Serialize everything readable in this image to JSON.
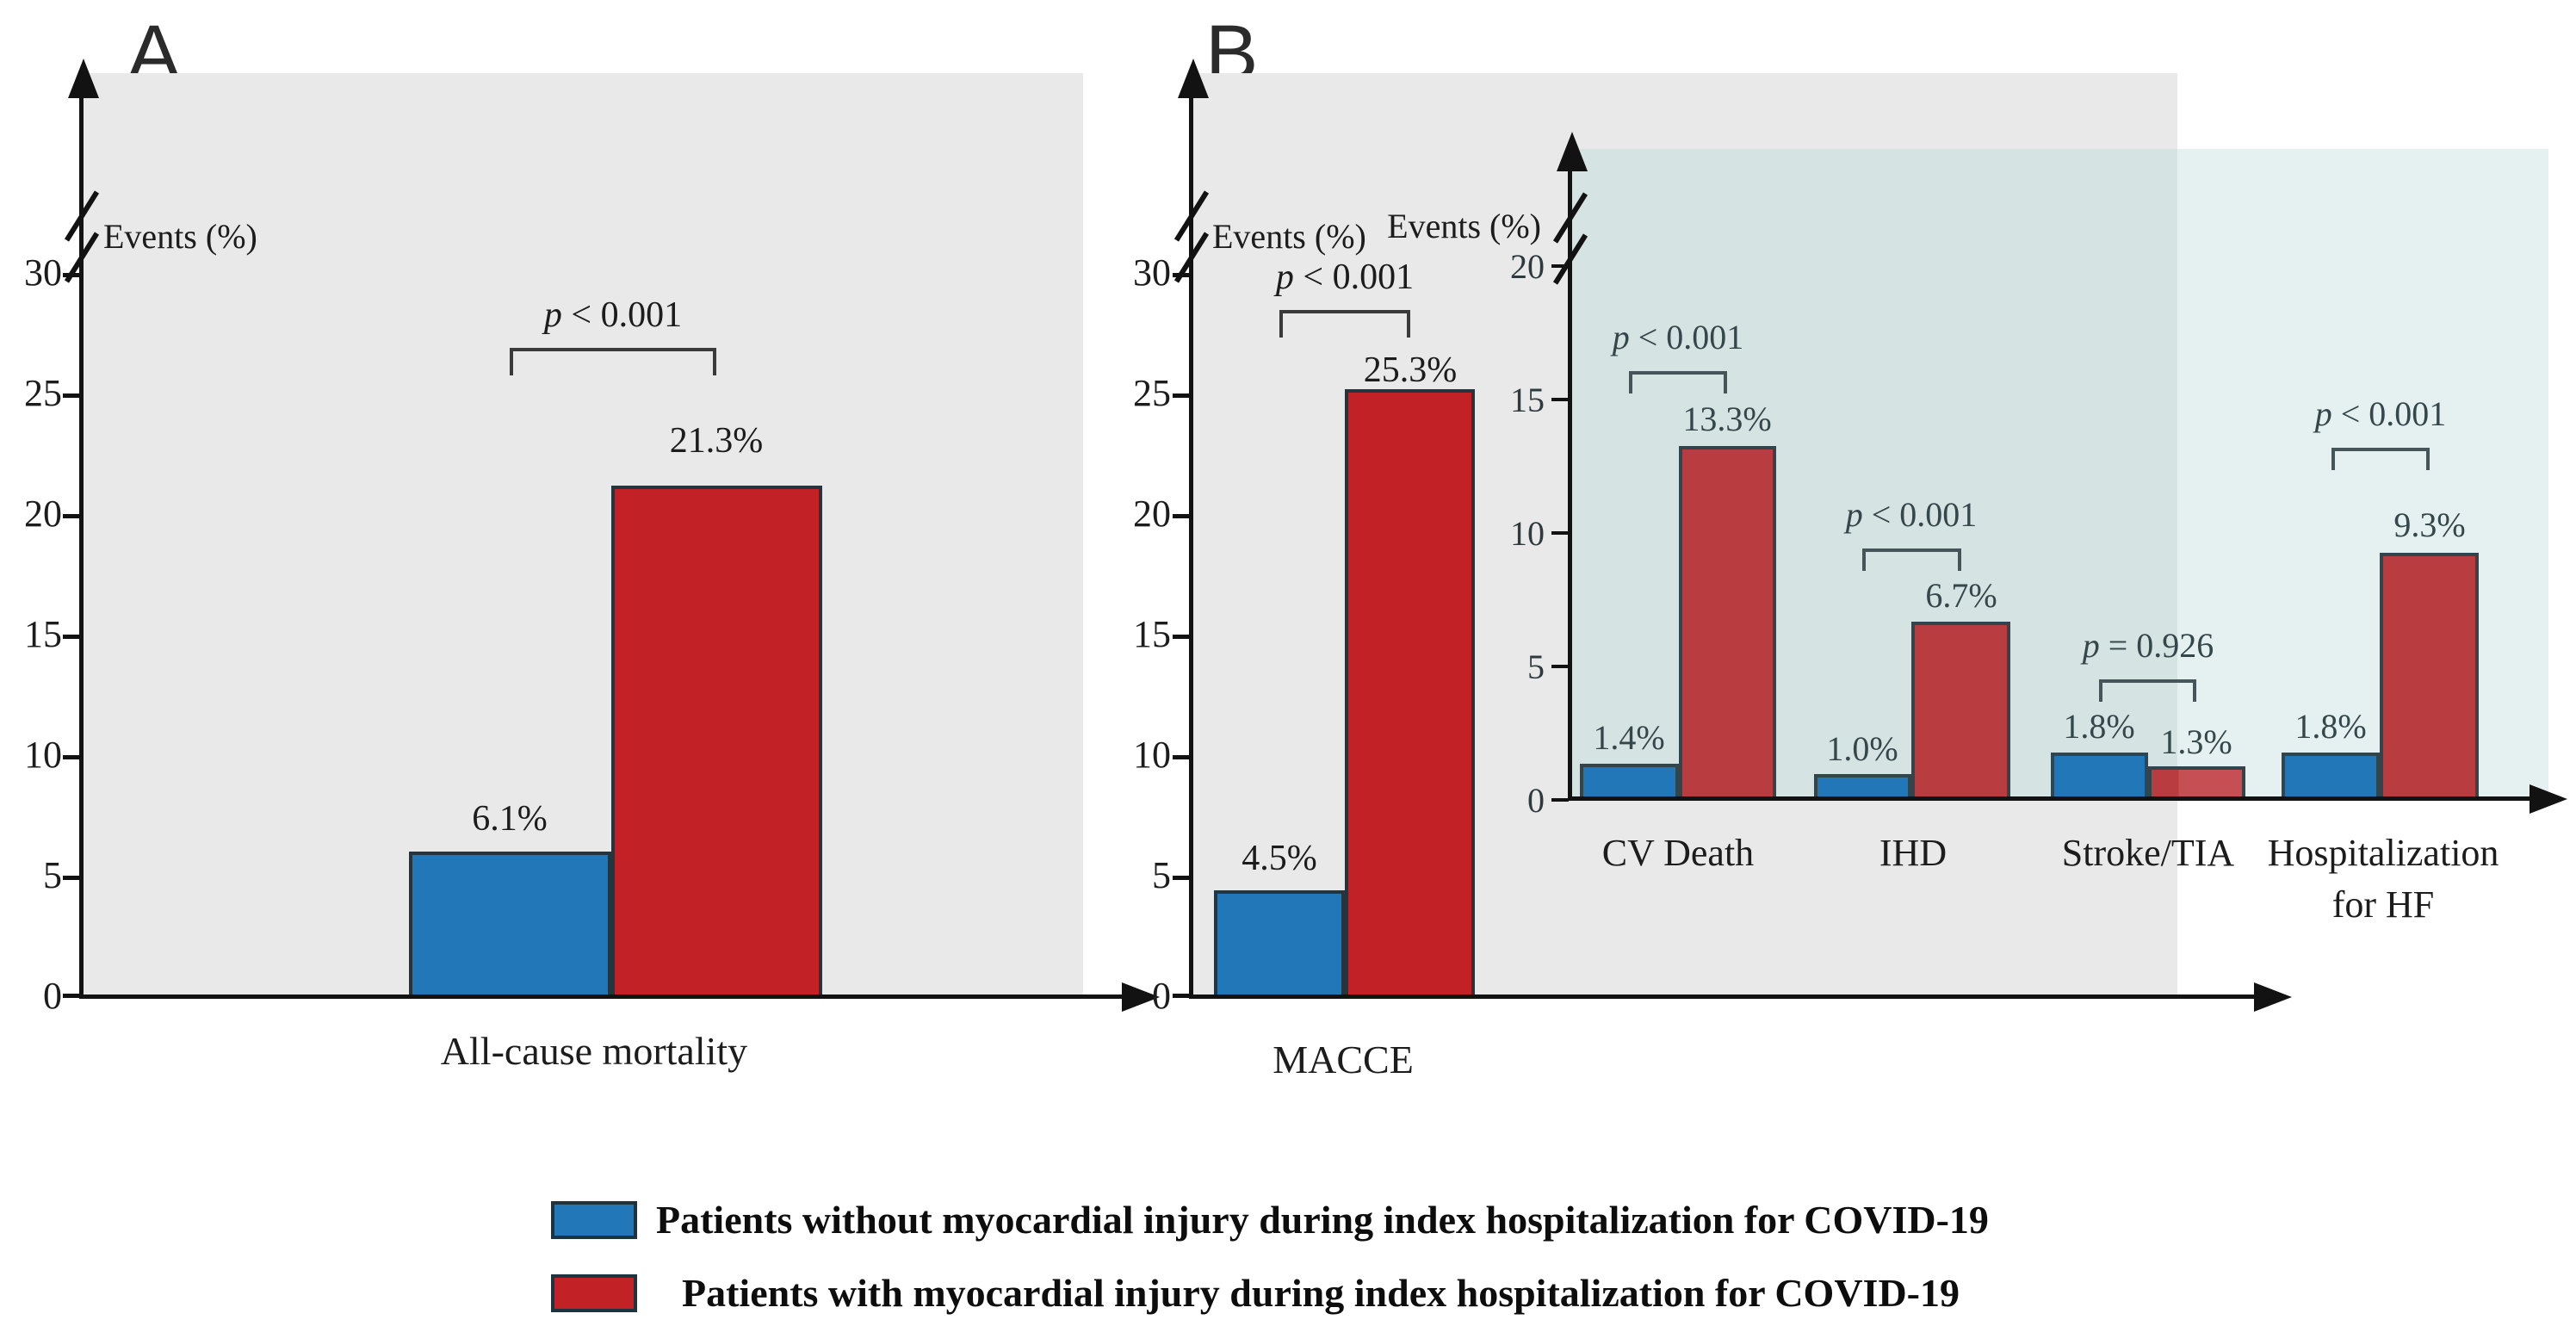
{
  "panels": {
    "a": "A",
    "b": "B"
  },
  "palette": {
    "blue": "#2277b8",
    "red": "#c22126",
    "inset_red": "#b93c41",
    "panel_background": "#e9e9e9",
    "inset_background_over_panel": "#d5e3e2",
    "inset_background_over_white": "#e5f1f0",
    "axis_color": "#121212"
  },
  "chart_data": [
    {
      "id": "panel-A",
      "type": "bar",
      "title": "",
      "ylabel": "Events (%)",
      "xlabel": "All-cause mortality",
      "categories": [
        "All-cause mortality"
      ],
      "series": [
        {
          "name": "Patients without myocardial injury during index hospitalization for COVID-19",
          "values": [
            6.1
          ]
        },
        {
          "name": "Patients with myocardial injury during index hospitalization for COVID-19",
          "values": [
            21.3
          ]
        }
      ],
      "y_ticks": [
        0,
        5,
        10,
        15,
        20,
        25,
        30
      ],
      "ylim": [
        0,
        33
      ],
      "axis_break": true,
      "grid": false,
      "p": {
        "sym": "p",
        "cmp": "< 0.001"
      }
    },
    {
      "id": "panel-B-main",
      "type": "bar",
      "title": "",
      "ylabel": "Events (%)",
      "xlabel": "MACCE",
      "categories": [
        "MACCE"
      ],
      "series": [
        {
          "name": "Patients without myocardial injury during index hospitalization for COVID-19",
          "values": [
            4.5
          ]
        },
        {
          "name": "Patients with myocardial injury during index hospitalization for COVID-19",
          "values": [
            25.3
          ]
        }
      ],
      "y_ticks": [
        0,
        5,
        10,
        15,
        20,
        25,
        30
      ],
      "ylim": [
        0,
        33
      ],
      "axis_break": true,
      "grid": false,
      "p": {
        "sym": "p",
        "cmp": "< 0.001"
      }
    },
    {
      "id": "panel-B-inset",
      "type": "bar",
      "title": "",
      "ylabel": "Events (%)",
      "xlabel": "",
      "categories": [
        "CV Death",
        "IHD",
        "Stroke/TIA",
        "Hospitalization for HF"
      ],
      "xlabels_line1": [
        "CV Death",
        "IHD",
        "Stroke/TIA",
        "Hospitalization"
      ],
      "xlabels_line2": [
        "",
        "",
        "",
        "for HF"
      ],
      "series": [
        {
          "name": "Patients without myocardial injury during index hospitalization for COVID-19",
          "values": [
            1.4,
            1.0,
            1.8,
            1.8
          ]
        },
        {
          "name": "Patients with myocardial injury during index hospitalization for COVID-19",
          "values": [
            13.3,
            6.7,
            1.3,
            9.3
          ]
        }
      ],
      "y_ticks": [
        0,
        5,
        10,
        15,
        20
      ],
      "ylim": [
        0,
        22
      ],
      "axis_break": true,
      "grid": false,
      "p_annotations": [
        {
          "sym": "p",
          "cmp": "< 0.001"
        },
        {
          "sym": "p",
          "cmp": "< 0.001"
        },
        {
          "sym": "p",
          "cmp": "= 0.926"
        },
        {
          "sym": "p",
          "cmp": "< 0.001"
        }
      ]
    }
  ],
  "legend": {
    "items": [
      {
        "swatch_color": "#2277b8",
        "label": "Patients without myocardial injury during index hospitalization for COVID-19"
      },
      {
        "swatch_color": "#c22126",
        "label": "Patients with myocardial injury during index hospitalization for COVID-19"
      }
    ]
  }
}
